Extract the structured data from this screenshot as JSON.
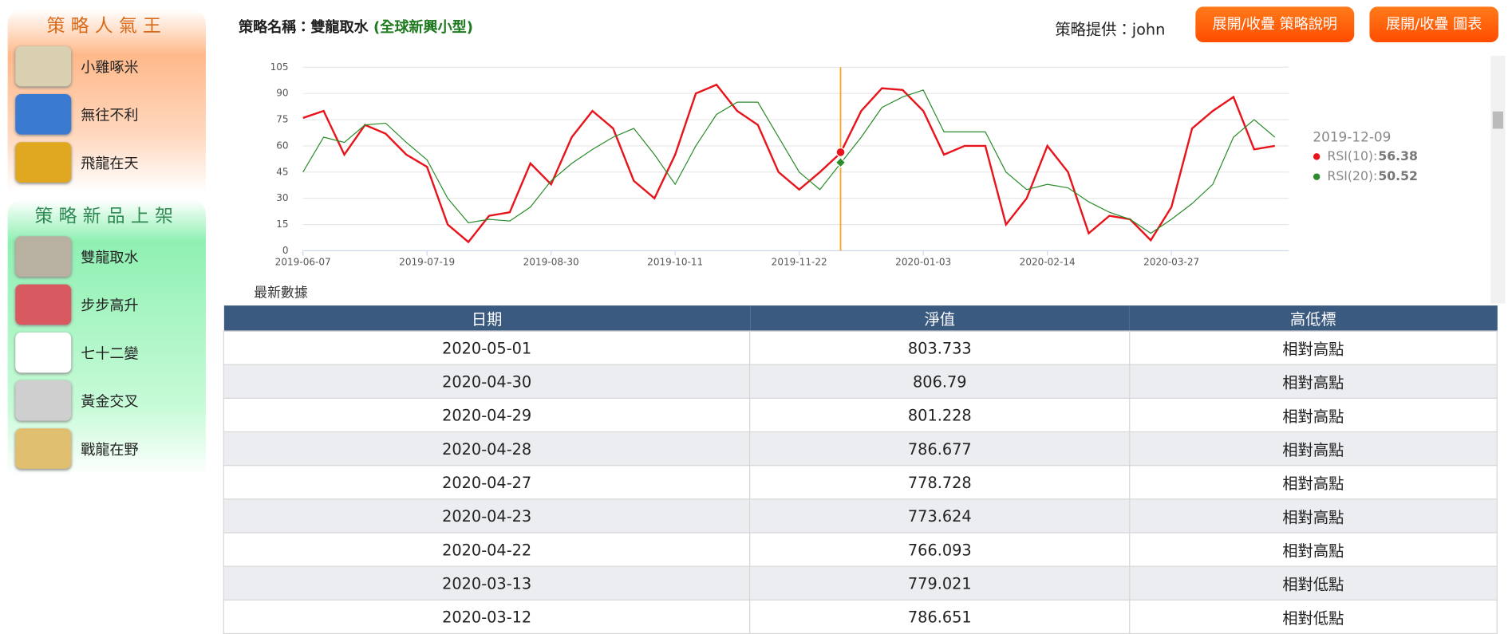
{
  "sidebar": {
    "sections": [
      {
        "title": "策略人氣王",
        "items": [
          "小雞啄米",
          "無往不利",
          "飛龍在天"
        ]
      },
      {
        "title": "策略新品上架",
        "items": [
          "雙龍取水",
          "步步高升",
          "七十二變",
          "黃金交叉",
          "戰龍在野"
        ]
      }
    ]
  },
  "header": {
    "strategy_label": "策略名稱：雙龍取水",
    "strategy_group": "(全球新興小型)",
    "provider": "策略提供：john",
    "buttons": [
      "展開/收疊 策略說明",
      "展開/收疊 圖表"
    ]
  },
  "chart_data": {
    "type": "line",
    "categories": [
      "2019-06-07",
      null,
      null,
      null,
      null,
      null,
      "2019-07-19",
      null,
      null,
      null,
      null,
      null,
      "2019-08-30",
      null,
      null,
      null,
      null,
      null,
      "2019-10-11",
      null,
      null,
      null,
      null,
      null,
      "2019-11-22",
      null,
      null,
      null,
      null,
      null,
      "2020-01-03",
      null,
      null,
      null,
      null,
      null,
      "2020-02-14",
      null,
      null,
      null,
      null,
      null,
      "2020-03-27",
      null,
      null,
      null,
      null,
      null
    ],
    "series": [
      {
        "color": "#e8141b",
        "values": [
          76,
          80,
          55,
          72,
          67,
          55,
          48,
          15,
          5,
          20,
          22,
          50,
          38,
          65,
          80,
          70,
          40,
          30,
          55,
          90,
          95,
          80,
          72,
          45,
          35,
          45,
          56,
          80,
          93,
          92,
          80,
          55,
          60,
          60,
          15,
          30,
          60,
          45,
          10,
          20,
          18,
          6,
          25,
          70,
          80,
          88,
          58,
          60
        ]
      },
      {
        "color": "#2a8c2a",
        "values": [
          45,
          65,
          62,
          72,
          73,
          62,
          52,
          30,
          16,
          18,
          17,
          25,
          40,
          50,
          58,
          65,
          70,
          55,
          38,
          60,
          78,
          85,
          85,
          65,
          45,
          35,
          50,
          65,
          82,
          88,
          92,
          68,
          68,
          68,
          45,
          35,
          38,
          36,
          28,
          22,
          18,
          10,
          18,
          27,
          38,
          65,
          75,
          65
        ]
      }
    ],
    "ylim": [
      0,
      105
    ],
    "yticks": [
      0,
      15,
      30,
      45,
      60,
      75,
      90,
      105
    ],
    "grid": true,
    "tooltip": {
      "date": "2019-12-09",
      "rows": [
        {
          "label": "RSI(10):",
          "value": 56.38,
          "color": "#e8141b"
        },
        {
          "label": "RSI(20):",
          "value": 50.52,
          "color": "#2a8c2a"
        }
      ]
    }
  },
  "latest_label": "最新數據",
  "table": {
    "columns": [
      "日期",
      "淨值",
      "高低標"
    ],
    "rows": [
      [
        "2020-05-01",
        803.733,
        "相對高點"
      ],
      [
        "2020-04-30",
        806.79,
        "相對高點"
      ],
      [
        "2020-04-29",
        801.228,
        "相對高點"
      ],
      [
        "2020-04-28",
        786.677,
        "相對高點"
      ],
      [
        "2020-04-27",
        778.728,
        "相對高點"
      ],
      [
        "2020-04-23",
        773.624,
        "相對高點"
      ],
      [
        "2020-04-22",
        766.093,
        "相對高點"
      ],
      [
        "2020-03-13",
        779.021,
        "相對低點"
      ],
      [
        "2020-03-12",
        786.651,
        "相對低點"
      ]
    ]
  }
}
